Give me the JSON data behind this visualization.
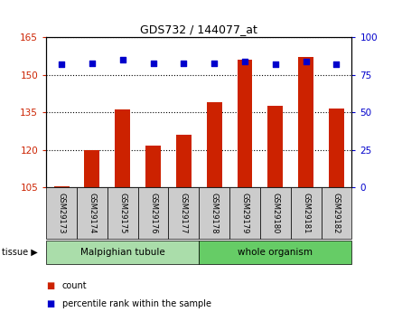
{
  "title": "GDS732 / 144077_at",
  "samples": [
    "GSM29173",
    "GSM29174",
    "GSM29175",
    "GSM29176",
    "GSM29177",
    "GSM29178",
    "GSM29179",
    "GSM29180",
    "GSM29181",
    "GSM29182"
  ],
  "counts": [
    105.5,
    120.0,
    136.0,
    121.5,
    126.0,
    139.0,
    156.0,
    137.5,
    157.0,
    136.5
  ],
  "percentiles": [
    82,
    83,
    85,
    83,
    83,
    83,
    84,
    82,
    84,
    82
  ],
  "ylim_left": [
    105,
    165
  ],
  "ylim_right": [
    0,
    100
  ],
  "yticks_left": [
    105,
    120,
    135,
    150,
    165
  ],
  "yticks_right": [
    0,
    25,
    50,
    75,
    100
  ],
  "bar_color": "#cc2200",
  "dot_color": "#0000cc",
  "tissue_groups": [
    {
      "label": "Malpighian tubule",
      "start": 0,
      "end": 5,
      "color": "#aaddaa"
    },
    {
      "label": "whole organism",
      "start": 5,
      "end": 10,
      "color": "#66cc66"
    }
  ],
  "legend_bar_label": "count",
  "legend_dot_label": "percentile rank within the sample",
  "tissue_label": "tissue",
  "sample_box_color": "#cccccc"
}
